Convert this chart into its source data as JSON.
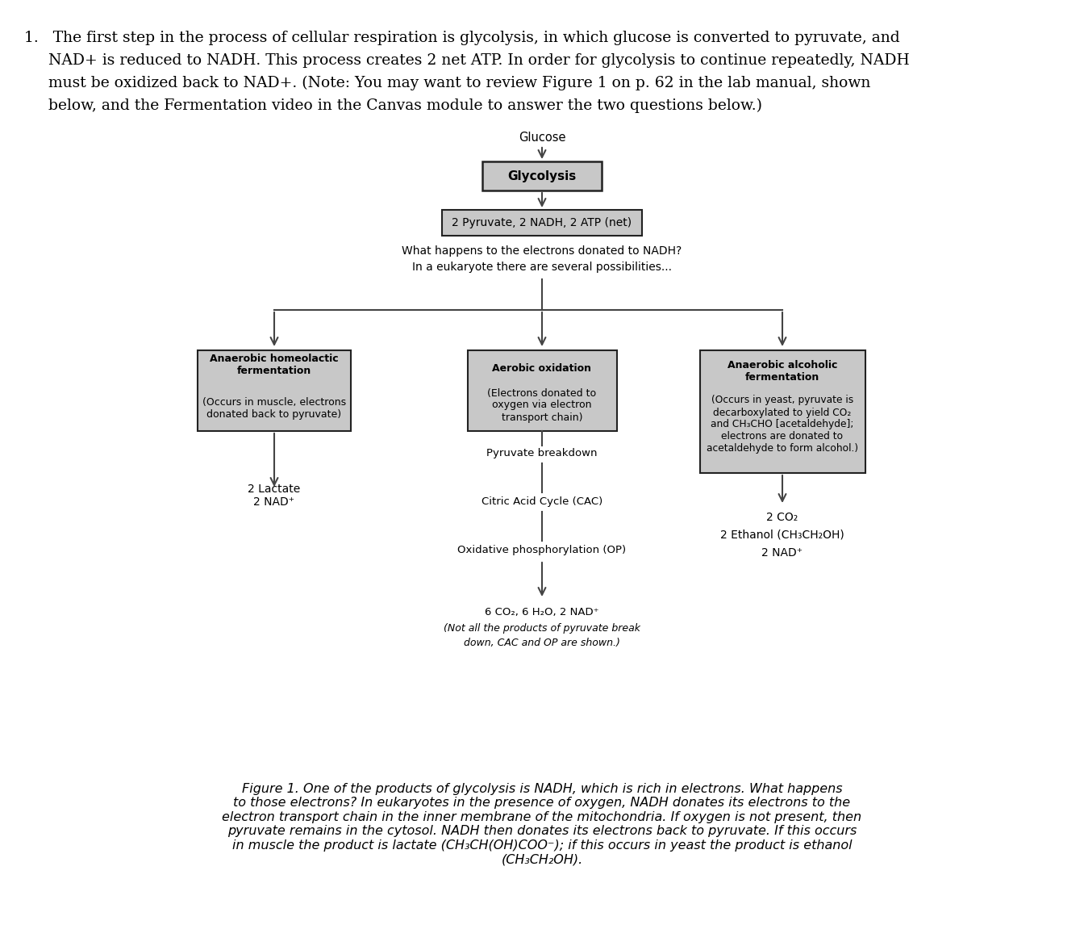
{
  "background_color": "#ffffff",
  "page_width": 13.44,
  "page_height": 11.72,
  "intro_text_line1": "1.   The first step in the process of cellular respiration is glycolysis, in which glucose is converted to pyruvate, and",
  "intro_text_line2": "     NAD+ is reduced to NADH. This process creates 2 net ATP. In order for glycolysis to continue repeatedly, NADH",
  "intro_text_line3": "     must be oxidized back to NAD+. (Note: You may want to review Figure 1 on p. 62 in the lab manual, shown",
  "intro_text_line4": "     below, and the Fermentation video in the Canvas module to answer the two questions below.)",
  "glucose_label": "Glucose",
  "glycolysis_box_text": "Glycolysis",
  "pyruvate_box_text": "2 Pyruvate, 2 NADH, 2 ATP (net)",
  "question_line1": "What happens to the electrons donated to NADH?",
  "question_line2": "In a eukaryote there are several possibilities...",
  "left_box_line1": "Anaerobic homeolactic",
  "left_box_line2": "fermentation",
  "left_box_line3": "(Occurs in muscle, electrons",
  "left_box_line4": "donated back to pyruvate)",
  "center_box_line1": "Aerobic oxidation",
  "center_box_line2": "(Electrons donated to",
  "center_box_line3": "oxygen via electron",
  "center_box_line4": "transport chain)",
  "right_box_line1": "Anaerobic alcoholic",
  "right_box_line2": "fermentation",
  "right_box_line3": "(Occurs in yeast, pyruvate is",
  "right_box_line4": "decarboxylated to yield CO₂",
  "right_box_line5": "and CH₃CHO [acetaldehyde];",
  "right_box_line6": "electrons are donated to",
  "right_box_line7": "acetaldehyde to form alcohol.)",
  "left_result_line1": "2 Lactate",
  "left_result_line2": "2 NAD⁺",
  "center_label1": "Pyruvate breakdown",
  "center_label2": "Citric Acid Cycle (CAC)",
  "center_label3": "Oxidative phosphorylation (OP)",
  "center_final_line1": "6 CO₂, 6 H₂O, 2 NAD⁺",
  "center_final_line2": "(Not all the products of pyruvate break",
  "center_final_line3": "down, CAC and OP are shown.)",
  "right_result_line1": "2 CO₂",
  "right_result_line2": "2 Ethanol (CH₃CH₂OH)",
  "right_result_line3": "2 NAD⁺",
  "fig_caption_bold": "Figure 1.",
  "fig_caption_italic": " One of the products of glycolysis is NADH, which is rich in electrons. What happens\nto those electrons? In eukaryotes in the presence of oxygen, NADH donates its electrons to the\nelectron transport chain in the inner membrane of the mitochondria. If oxygen is not present, then\npyruvate remains in the cytosol. NADH then donates its electrons back to pyruvate. If this occurs\nin muscle the product is lactate (CH₃CH(OH)COO⁻); if this occurs in yeast the product is ethanol\n(CH₃CH₂OH).",
  "box_facecolor": "#c8c8c8",
  "box_edgecolor": "#222222",
  "arrow_color": "#444444",
  "text_color": "#000000"
}
